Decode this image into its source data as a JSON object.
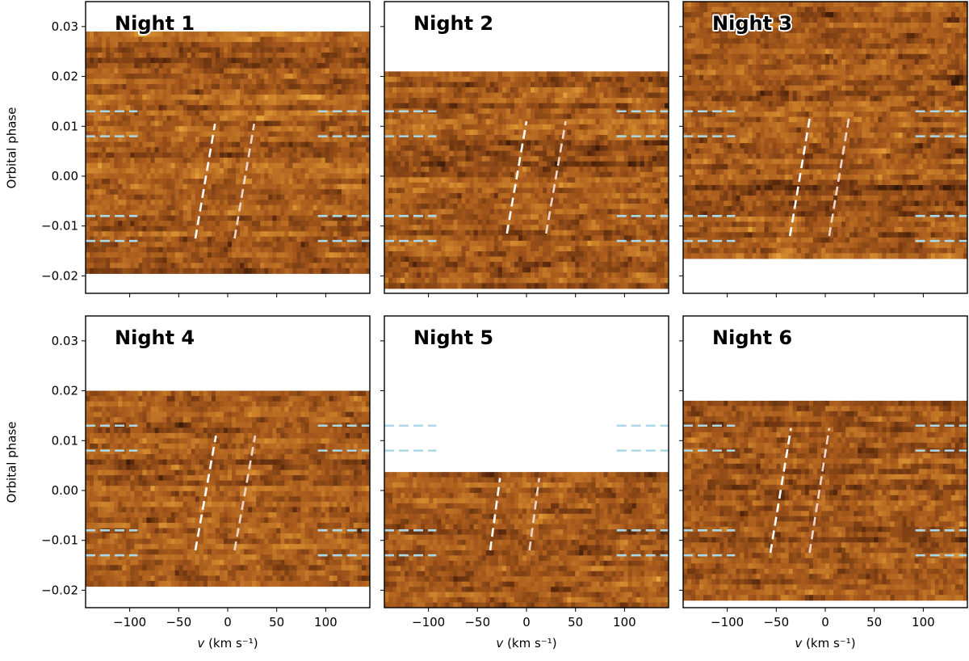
{
  "chart_data": {
    "type": "heatmap",
    "layout": "2 rows x 3 columns, shared axes",
    "ylabel": "Orbital phase",
    "xlabel_prefix": "v",
    "xlabel_suffix": " (km s⁻¹)",
    "xlim": [
      -145,
      145
    ],
    "ylim": [
      -0.0235,
      0.035
    ],
    "xticks": [
      -100,
      -50,
      0,
      50,
      100
    ],
    "xtick_labels": [
      "−100",
      "−50",
      "0",
      "50",
      "100"
    ],
    "yticks": [
      0.03,
      0.02,
      0.01,
      0.0,
      -0.01,
      -0.02
    ],
    "ytick_labels": [
      "0.03",
      "0.02",
      "0.01",
      "0.00",
      "−0.01",
      "−0.02"
    ],
    "colormap": "copper",
    "colors": {
      "dark": "#000000",
      "mid": "#a85a1c",
      "bright": "#f0bc45",
      "transit_marker": "#add8e6",
      "trail_left": "#ffffff",
      "trail_right": "#f1d6cc"
    },
    "transit_phase_lines": [
      0.013,
      0.008,
      -0.008,
      -0.013
    ],
    "transit_line_extent_x": [
      [
        -145,
        -92
      ],
      [
        92,
        145
      ]
    ],
    "panels": [
      {
        "title": "Night 1",
        "phase_range": [
          -0.0195,
          0.029
        ],
        "trail_left": [
          [
            -33,
            -0.0125
          ],
          [
            -13,
            0.0105
          ]
        ],
        "trail_right": [
          [
            7,
            -0.0125
          ],
          [
            27,
            0.0105
          ]
        ]
      },
      {
        "title": "Night 2",
        "phase_range": [
          -0.0225,
          0.021
        ],
        "trail_left": [
          [
            -20,
            -0.0115
          ],
          [
            0,
            0.011
          ]
        ],
        "trail_right": [
          [
            20,
            -0.0115
          ],
          [
            40,
            0.011
          ]
        ]
      },
      {
        "title": "Night 3",
        "phase_range": [
          -0.0165,
          0.0355
        ],
        "trail_left": [
          [
            -36,
            -0.012
          ],
          [
            -16,
            0.0115
          ]
        ],
        "trail_right": [
          [
            4,
            -0.012
          ],
          [
            24,
            0.0115
          ]
        ]
      },
      {
        "title": "Night 4",
        "phase_range": [
          -0.0192,
          0.02
        ],
        "trail_left": [
          [
            -33,
            -0.012
          ],
          [
            -12,
            0.011
          ]
        ],
        "trail_right": [
          [
            7,
            -0.012
          ],
          [
            28,
            0.011
          ]
        ]
      },
      {
        "title": "Night 5",
        "phase_range": [
          -0.0235,
          0.0037
        ],
        "trail_left": [
          [
            -37,
            -0.012
          ],
          [
            -27,
            0.0025
          ]
        ],
        "trail_right": [
          [
            3,
            -0.012
          ],
          [
            13,
            0.0025
          ]
        ]
      },
      {
        "title": "Night 6",
        "phase_range": [
          -0.022,
          0.018
        ],
        "trail_left": [
          [
            -56,
            -0.0125
          ],
          [
            -35,
            0.0125
          ]
        ],
        "trail_right": [
          [
            -16,
            -0.0125
          ],
          [
            4,
            0.0125
          ]
        ]
      }
    ]
  }
}
